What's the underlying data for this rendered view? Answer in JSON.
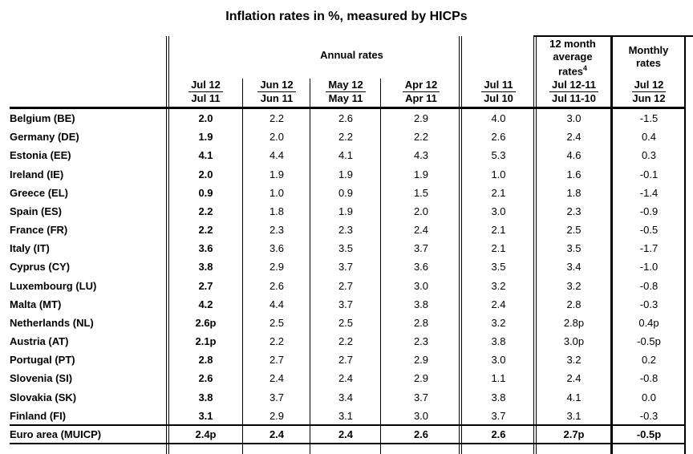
{
  "title": "Inflation rates in %, measured by HICPs",
  "table": {
    "group_headers": {
      "annual": "Annual rates",
      "avg12_line1": "12 month",
      "avg12_line2": "average",
      "avg12_line3": "rates",
      "avg12_footnote": "4",
      "monthly_line1": "Monthly",
      "monthly_line2": "rates"
    },
    "column_headers": [
      {
        "top": "Jul 12",
        "bottom": "Jul 11"
      },
      {
        "top": "Jun 12",
        "bottom": "Jun 11"
      },
      {
        "top": "May 12",
        "bottom": "May 11"
      },
      {
        "top": "Apr 12",
        "bottom": "Apr 11"
      },
      {
        "top": "Jul 11",
        "bottom": "Jul 10"
      },
      {
        "top": "Jul 12-11",
        "bottom": "Jul 11-10"
      },
      {
        "top": "Jul 12",
        "bottom": "Jun 12"
      }
    ],
    "rows": [
      {
        "label": "Belgium (BE)",
        "values": [
          "2.0",
          "2.2",
          "2.6",
          "2.9",
          "4.0",
          "3.0",
          "-1.5"
        ]
      },
      {
        "label": "Germany (DE)",
        "values": [
          "1.9",
          "2.0",
          "2.2",
          "2.2",
          "2.6",
          "2.4",
          "0.4"
        ]
      },
      {
        "label": "Estonia (EE)",
        "values": [
          "4.1",
          "4.4",
          "4.1",
          "4.3",
          "5.3",
          "4.6",
          "0.3"
        ]
      },
      {
        "label": "Ireland (IE)",
        "values": [
          "2.0",
          "1.9",
          "1.9",
          "1.9",
          "1.0",
          "1.6",
          "-0.1"
        ]
      },
      {
        "label": "Greece (EL)",
        "values": [
          "0.9",
          "1.0",
          "0.9",
          "1.5",
          "2.1",
          "1.8",
          "-1.4"
        ]
      },
      {
        "label": "Spain (ES)",
        "values": [
          "2.2",
          "1.8",
          "1.9",
          "2.0",
          "3.0",
          "2.3",
          "-0.9"
        ]
      },
      {
        "label": "France (FR)",
        "values": [
          "2.2",
          "2.3",
          "2.3",
          "2.4",
          "2.1",
          "2.5",
          "-0.5"
        ]
      },
      {
        "label": "Italy (IT)",
        "values": [
          "3.6",
          "3.6",
          "3.5",
          "3.7",
          "2.1",
          "3.5",
          "-1.7"
        ]
      },
      {
        "label": "Cyprus (CY)",
        "values": [
          "3.8",
          "2.9",
          "3.7",
          "3.6",
          "3.5",
          "3.4",
          "-1.0"
        ]
      },
      {
        "label": "Luxembourg (LU)",
        "values": [
          "2.7",
          "2.6",
          "2.7",
          "3.0",
          "3.2",
          "3.2",
          "-0.8"
        ]
      },
      {
        "label": "Malta (MT)",
        "values": [
          "4.2",
          "4.4",
          "3.7",
          "3.8",
          "2.4",
          "2.8",
          "-0.3"
        ]
      },
      {
        "label": "Netherlands (NL)",
        "values": [
          "2.6p",
          "2.5",
          "2.5",
          "2.8",
          "3.2",
          "2.8p",
          "0.4p"
        ]
      },
      {
        "label": "Austria (AT)",
        "values": [
          "2.1p",
          "2.2",
          "2.2",
          "2.3",
          "3.8",
          "3.0p",
          "-0.5p"
        ]
      },
      {
        "label": "Portugal (PT)",
        "values": [
          "2.8",
          "2.7",
          "2.7",
          "2.9",
          "3.0",
          "3.2",
          "0.2"
        ]
      },
      {
        "label": "Slovenia (SI)",
        "values": [
          "2.6",
          "2.4",
          "2.4",
          "2.9",
          "1.1",
          "2.4",
          "-0.8"
        ]
      },
      {
        "label": "Slovakia (SK)",
        "values": [
          "3.8",
          "3.7",
          "3.4",
          "3.7",
          "3.8",
          "4.1",
          "0.0"
        ]
      },
      {
        "label": "Finland (FI)",
        "values": [
          "3.1",
          "2.9",
          "3.1",
          "3.0",
          "3.7",
          "3.1",
          "-0.3"
        ]
      },
      {
        "label": "Euro area (MUICP)",
        "values": [
          "2.4p",
          "2.4",
          "2.4",
          "2.6",
          "2.6",
          "2.7p",
          "-0.5p"
        ],
        "bold": true
      }
    ]
  }
}
